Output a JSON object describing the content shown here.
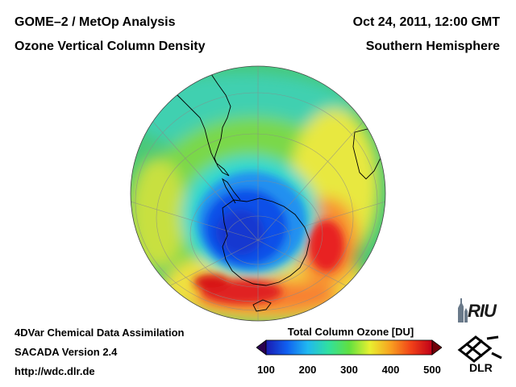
{
  "header": {
    "product": "GOME–2 / MetOp Analysis",
    "quantity": "Ozone Vertical Column Density",
    "datetime": "Oct 24, 2011, 12:00 GMT",
    "region": "Southern Hemisphere"
  },
  "footer": {
    "method": "4DVar Chemical Data Assimilation",
    "version": "SACADA Version 2.4",
    "url": "http://wdc.dlr.de"
  },
  "colorbar": {
    "title": "Total Column Ozone [DU]",
    "ticks": [
      "100",
      "200",
      "300",
      "400",
      "500"
    ],
    "tick_values": [
      100,
      200,
      300,
      400,
      500
    ],
    "range": [
      100,
      500
    ],
    "colors": [
      "#2a0050",
      "#1a1ab0",
      "#1060f0",
      "#20b8f0",
      "#30e0a0",
      "#60e040",
      "#e8f030",
      "#f8a020",
      "#f04018",
      "#c00018",
      "#700008"
    ]
  },
  "logos": {
    "riu": "RIU",
    "dlr": "DLR"
  }
}
